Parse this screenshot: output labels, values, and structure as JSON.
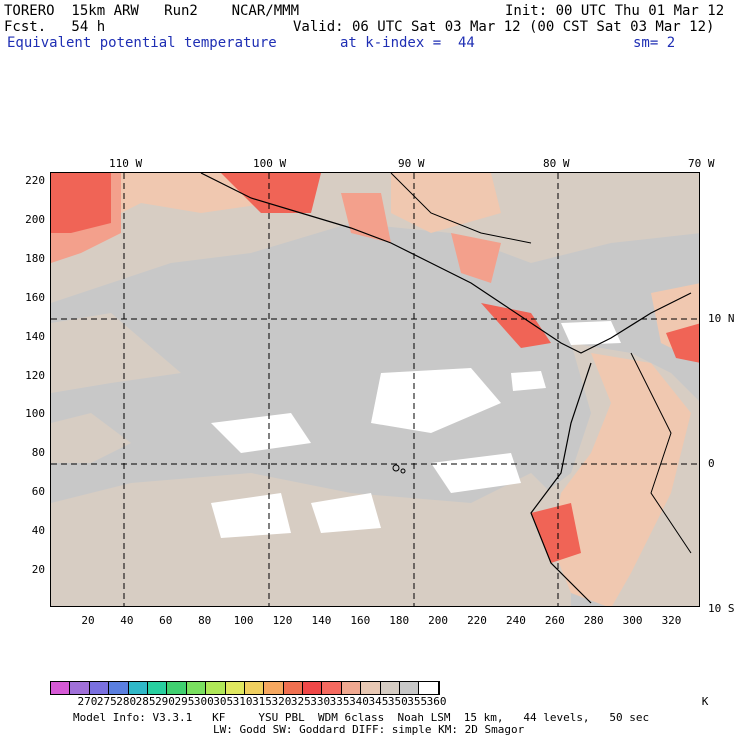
{
  "header": {
    "model": "TORERO  15km ARW   Run2    NCAR/MMM",
    "init": "Init: 00 UTC Thu 01 Mar 12",
    "fcst": "Fcst.   54 h",
    "valid": "Valid: 06 UTC Sat 03 Mar 12 (00 CST Sat 03 Mar 12)",
    "field": "Equivalent potential temperature",
    "level": "at k-index =  44",
    "smoothing": "sm= 2"
  },
  "axes": {
    "lon_labels": [
      "110 W",
      "100 W",
      "90 W",
      "80 W",
      "70 W"
    ],
    "lat_labels": [
      "10 N",
      "0",
      "10 S"
    ],
    "y_ticks": [
      "220",
      "200",
      "180",
      "160",
      "140",
      "120",
      "100",
      "80",
      "60",
      "40",
      "20"
    ],
    "x_ticks": [
      "20",
      "40",
      "60",
      "80",
      "100",
      "120",
      "140",
      "160",
      "180",
      "200",
      "220",
      "240",
      "260",
      "280",
      "300",
      "320"
    ]
  },
  "colorbar": {
    "labels": [
      "270",
      "275",
      "280",
      "285",
      "290",
      "295",
      "300",
      "305",
      "310",
      "315",
      "320",
      "325",
      "330",
      "335",
      "340",
      "345",
      "350",
      "355",
      "360"
    ],
    "unit": "K",
    "colors": [
      "#d65ad6",
      "#a070d8",
      "#7a70e0",
      "#5a7fe0",
      "#2fb8c8",
      "#28d0a0",
      "#40d070",
      "#7ae060",
      "#b0e858",
      "#e0e860",
      "#f0d060",
      "#f6a860",
      "#f07050",
      "#f04848",
      "#f56a60",
      "#f0a890",
      "#e8c8b4",
      "#d6cdc4",
      "#c8c8c8",
      "#ffffff"
    ]
  },
  "footer": {
    "line1": "Model Info: V3.3.1   KF     YSU PBL  WDM 6class  Noah LSM  15 km,   44 levels,   50 sec",
    "line2": "LW: Godd SW: Goddard DIFF: simple KM: 2D Smagor"
  },
  "map_colors": {
    "base": "#c8c8c8",
    "warm": "#d7cdc3",
    "peach": "#f0c8b0",
    "salmon": "#f3a08c",
    "red": "#f06456",
    "white": "#ffffff"
  }
}
